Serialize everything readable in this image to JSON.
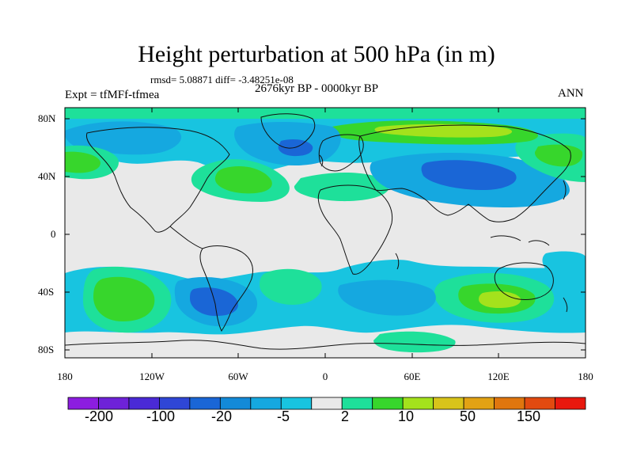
{
  "title": "Height perturbation at 500 hPa (in m)",
  "stats_line": "rmsd= 5.08871 diff= -3.48251e-08",
  "period": "2676kyr BP - 0000kyr BP",
  "experiment": "Expt = tfMFf-tfmea",
  "season": "ANN",
  "lat_ticks": [
    "80N",
    "40N",
    "0",
    "40S",
    "80S"
  ],
  "lon_ticks": [
    "180",
    "120W",
    "60W",
    "0",
    "60E",
    "120E",
    "180"
  ],
  "colorbar": {
    "colors": [
      "#8c1de0",
      "#6e22d8",
      "#4a2ad6",
      "#2f46d6",
      "#1a66d6",
      "#138ad8",
      "#15a8e0",
      "#18c4e0",
      "#e9e9e9",
      "#1ee09a",
      "#37d62c",
      "#a4e21c",
      "#d8c41a",
      "#e2a214",
      "#e0760e",
      "#e24a10",
      "#e8180e"
    ],
    "labels": [
      "-200",
      "-100",
      "-20",
      "-5",
      "2",
      "10",
      "50",
      "150"
    ]
  },
  "map_colors": {
    "background": "#e9e9e9",
    "neg_light": "#18c4e0",
    "neg_mid": "#15a8e0",
    "neg_dark": "#1a66d6",
    "pos_light": "#1ee09a",
    "pos_mid": "#37d62c",
    "pos_high": "#a4e21c",
    "coast": "#111111"
  }
}
